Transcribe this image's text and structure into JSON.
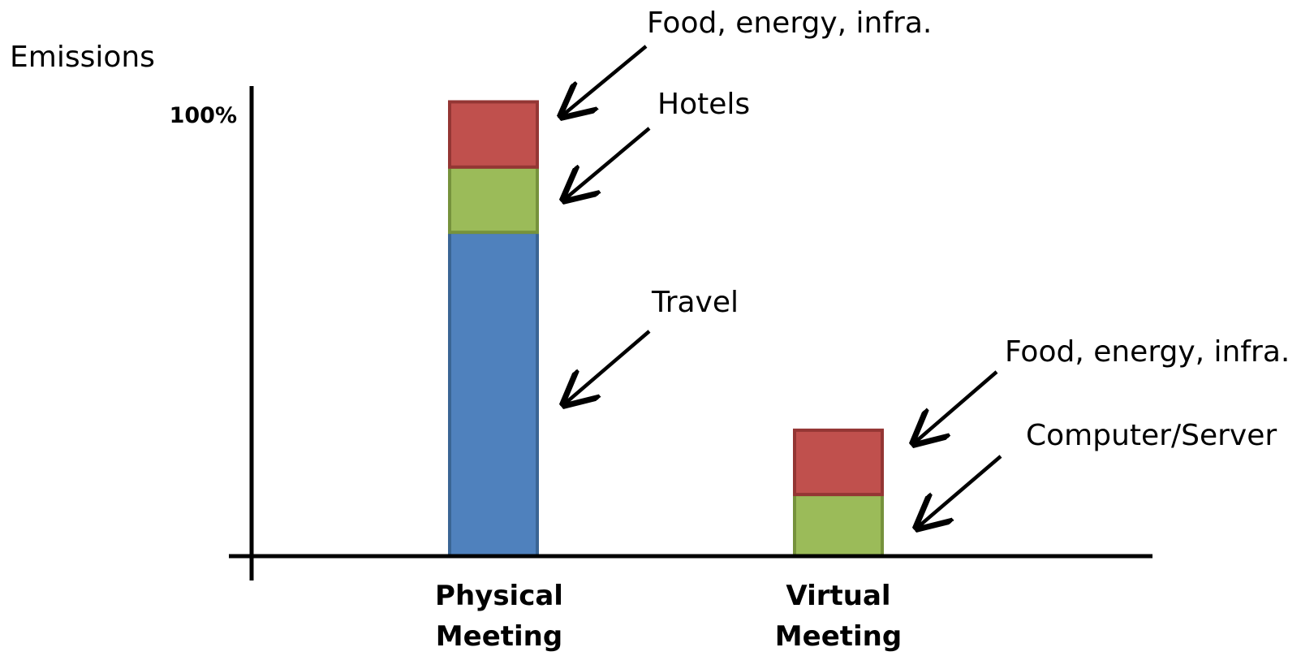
{
  "chart_data": {
    "type": "bar",
    "stacked": true,
    "title": "",
    "xlabel": "",
    "ylabel": "Emissions",
    "ylim": [
      0,
      100
    ],
    "y_ticks": [
      {
        "value": 100,
        "label": "100%"
      }
    ],
    "grid": false,
    "legend": "none",
    "categories": [
      {
        "label_lines": [
          "Physical",
          "Meeting"
        ]
      },
      {
        "label_lines": [
          "Virtual",
          "Meeting"
        ]
      }
    ],
    "segments": [
      {
        "category": 0,
        "value": 72,
        "color": "#4f81bd",
        "border": "#3a6594"
      },
      {
        "category": 0,
        "value": 14.5,
        "color": "#9bbb59",
        "border": "#76923c"
      },
      {
        "category": 0,
        "value": 14.5,
        "color": "#c0504d",
        "border": "#943634"
      },
      {
        "category": 1,
        "value": 13.7,
        "color": "#9bbb59",
        "border": "#76923c"
      },
      {
        "category": 1,
        "value": 14.3,
        "color": "#c0504d",
        "border": "#943634"
      }
    ],
    "annotations": [
      {
        "id": "phys-food",
        "category": 0,
        "segment": 2,
        "text": "Food, energy, infra."
      },
      {
        "id": "phys-hotels",
        "category": 0,
        "segment": 1,
        "text": "Hotels"
      },
      {
        "id": "phys-travel",
        "category": 0,
        "segment": 0,
        "text": "Travel"
      },
      {
        "id": "virt-food",
        "category": 1,
        "segment": 4,
        "text": "Food, energy, infra."
      },
      {
        "id": "virt-computer",
        "category": 1,
        "segment": 3,
        "text": "Computer/Server"
      }
    ]
  }
}
